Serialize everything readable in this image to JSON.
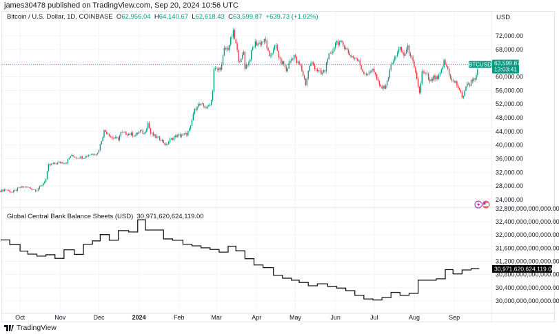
{
  "header": {
    "published": "james30478 published on TradingView.com, Sep 20, 2024 10:56 UTC"
  },
  "legend": {
    "symbol": "Bitcoin / U.S. Dollar, 1D, COINBASE",
    "o_label": "O",
    "o": "62,956.04",
    "h_label": "H",
    "h": "64,140.67",
    "l_label": "L",
    "l": "62,618.43",
    "c_label": "C",
    "c": "63,599.87",
    "change": "+639.73 (+1.02%)"
  },
  "currency": "USD",
  "last_price": {
    "ticker": "BTCUSD",
    "price": "63,599.87",
    "countdown": "13:03:41",
    "value": 63599.87
  },
  "indicator": {
    "name": "Global Central Bank Balance Sheets (USD)",
    "value": "30,971,620,624,119.00",
    "value_t": 30.9716
  },
  "footer": {
    "brand": "TradingView"
  },
  "colors": {
    "up": "#089981",
    "down": "#f23645",
    "line": "#131722",
    "ind_label_bg": "#000000"
  },
  "chart_data": [
    {
      "type": "candlestick",
      "title": "Bitcoin / U.S. Dollar, 1D, COINBASE",
      "x_unit": "days since 2023-09-16",
      "ylim": [
        22000,
        75500
      ],
      "yticks": [
        24000,
        28000,
        32000,
        36000,
        40000,
        44000,
        48000,
        52000,
        56000,
        60000,
        68000,
        72000
      ],
      "ytick_labels": [
        "24,000.00",
        "28,000.00",
        "32,000.00",
        "36,000.00",
        "40,000.00",
        "44,000.00",
        "48,000.00",
        "52,000.00",
        "56,000.00",
        "60,000.00",
        "68,000.00",
        "72,000.00"
      ],
      "approx_closes": [
        [
          0,
          26600
        ],
        [
          4,
          26950
        ],
        [
          9,
          26150
        ],
        [
          15,
          27560
        ],
        [
          19,
          27760
        ],
        [
          24,
          27150
        ],
        [
          28,
          26750
        ],
        [
          32,
          28350
        ],
        [
          35,
          30000
        ],
        [
          37,
          34000
        ],
        [
          40,
          34430
        ],
        [
          45,
          34830
        ],
        [
          51,
          35000
        ],
        [
          54,
          36850
        ],
        [
          59,
          36450
        ],
        [
          64,
          36450
        ],
        [
          69,
          37250
        ],
        [
          75,
          37650
        ],
        [
          77,
          40100
        ],
        [
          80,
          44100
        ],
        [
          83,
          43500
        ],
        [
          86,
          42100
        ],
        [
          91,
          41900
        ],
        [
          93,
          43500
        ],
        [
          99,
          43300
        ],
        [
          104,
          42900
        ],
        [
          108,
          44100
        ],
        [
          111,
          43300
        ],
        [
          114,
          46500
        ],
        [
          116,
          43500
        ],
        [
          120,
          42300
        ],
        [
          124,
          41700
        ],
        [
          128,
          39900
        ],
        [
          131,
          41500
        ],
        [
          136,
          42700
        ],
        [
          141,
          42900
        ],
        [
          144,
          43300
        ],
        [
          147,
          45100
        ],
        [
          149,
          49200
        ],
        [
          152,
          51800
        ],
        [
          156,
          51600
        ],
        [
          160,
          50800
        ],
        [
          163,
          53200
        ],
        [
          164,
          56200
        ],
        [
          165,
          62300
        ],
        [
          168,
          61900
        ],
        [
          171,
          63300
        ],
        [
          173,
          67900
        ],
        [
          176,
          68400
        ],
        [
          179,
          72000
        ],
        [
          180,
          72800
        ],
        [
          182,
          69400
        ],
        [
          184,
          65300
        ],
        [
          186,
          64700
        ],
        [
          188,
          67400
        ],
        [
          189,
          62900
        ],
        [
          192,
          64300
        ],
        [
          195,
          68400
        ],
        [
          197,
          69800
        ],
        [
          200,
          69800
        ],
        [
          203,
          70400
        ],
        [
          205,
          70400
        ],
        [
          208,
          65300
        ],
        [
          211,
          68400
        ],
        [
          213,
          68800
        ],
        [
          216,
          64700
        ],
        [
          219,
          63700
        ],
        [
          221,
          61700
        ],
        [
          224,
          64700
        ],
        [
          227,
          66300
        ],
        [
          229,
          64300
        ],
        [
          232,
          63100
        ],
        [
          235,
          59300
        ],
        [
          236,
          57900
        ],
        [
          239,
          63300
        ],
        [
          241,
          63900
        ],
        [
          245,
          61900
        ],
        [
          248,
          60700
        ],
        [
          251,
          61900
        ],
        [
          253,
          65900
        ],
        [
          256,
          66300
        ],
        [
          259,
          70400
        ],
        [
          262,
          70000
        ],
        [
          264,
          69400
        ],
        [
          267,
          68800
        ],
        [
          269,
          66700
        ],
        [
          272,
          66000
        ],
        [
          275,
          65300
        ],
        [
          277,
          64300
        ],
        [
          280,
          61700
        ],
        [
          283,
          60900
        ],
        [
          285,
          60700
        ],
        [
          288,
          62700
        ],
        [
          291,
          59300
        ],
        [
          293,
          57300
        ],
        [
          296,
          56600
        ],
        [
          299,
          58300
        ],
        [
          301,
          62300
        ],
        [
          304,
          64700
        ],
        [
          307,
          67400
        ],
        [
          309,
          68000
        ],
        [
          312,
          66300
        ],
        [
          315,
          68400
        ],
        [
          317,
          66700
        ],
        [
          320,
          62300
        ],
        [
          323,
          57300
        ],
        [
          324,
          55200
        ],
        [
          326,
          61300
        ],
        [
          330,
          60300
        ],
        [
          332,
          58300
        ],
        [
          335,
          59700
        ],
        [
          338,
          59300
        ],
        [
          340,
          60700
        ],
        [
          343,
          64300
        ],
        [
          346,
          62300
        ],
        [
          349,
          58700
        ],
        [
          352,
          58300
        ],
        [
          355,
          56200
        ],
        [
          357,
          53600
        ],
        [
          360,
          57300
        ],
        [
          363,
          57900
        ],
        [
          365,
          59300
        ],
        [
          368,
          59900
        ],
        [
          370,
          63599.87
        ]
      ]
    },
    {
      "type": "line",
      "step": true,
      "title": "Global Central Bank Balance Sheets (USD)",
      "y_unit": "trillion USD",
      "ylim": [
        29.6,
        32.9
      ],
      "yticks": [
        30.0,
        30.4,
        30.8,
        31.2,
        31.6,
        32.0,
        32.4,
        32.8
      ],
      "ytick_labels": [
        "30,000,000,000,000.00",
        "30,400,000,000,000.00",
        "30,800,000,000,000.00",
        "31,200,000,000,000.00",
        "31,600,000,000,000.00",
        "32,000,000,000,000.00",
        "32,400,000,000,000.00",
        "32,800,000,000,000.00"
      ],
      "points": [
        [
          0,
          31.85
        ],
        [
          7,
          31.71
        ],
        [
          15,
          31.51
        ],
        [
          21,
          31.42
        ],
        [
          28,
          31.36
        ],
        [
          35,
          31.4
        ],
        [
          42,
          31.29
        ],
        [
          49,
          31.55
        ],
        [
          57,
          31.41
        ],
        [
          64,
          31.72
        ],
        [
          71,
          31.82
        ],
        [
          77,
          32.01
        ],
        [
          84,
          31.84
        ],
        [
          91,
          32.13
        ],
        [
          99,
          32.09
        ],
        [
          106,
          32.46
        ],
        [
          112,
          32.15
        ],
        [
          126,
          31.88
        ],
        [
          133,
          31.84
        ],
        [
          141,
          31.72
        ],
        [
          148,
          31.67
        ],
        [
          155,
          31.61
        ],
        [
          162,
          31.56
        ],
        [
          169,
          31.48
        ],
        [
          176,
          31.66
        ],
        [
          182,
          31.52
        ],
        [
          189,
          31.28
        ],
        [
          196,
          31.09
        ],
        [
          203,
          31.01
        ],
        [
          211,
          30.78
        ],
        [
          218,
          30.69
        ],
        [
          225,
          30.63
        ],
        [
          231,
          30.56
        ],
        [
          238,
          30.46
        ],
        [
          245,
          30.52
        ],
        [
          253,
          30.44
        ],
        [
          260,
          30.39
        ],
        [
          267,
          30.31
        ],
        [
          274,
          30.17
        ],
        [
          281,
          30.06
        ],
        [
          288,
          30.03
        ],
        [
          295,
          30.1
        ],
        [
          302,
          30.26
        ],
        [
          309,
          30.17
        ],
        [
          316,
          30.23
        ],
        [
          323,
          30.63
        ],
        [
          337,
          30.67
        ],
        [
          344,
          30.95
        ],
        [
          350,
          30.82
        ],
        [
          357,
          30.94
        ],
        [
          364,
          30.98
        ],
        [
          370,
          30.97
        ]
      ]
    }
  ],
  "time_axis": [
    {
      "label": "Oct",
      "day": 15
    },
    {
      "label": "Nov",
      "day": 46
    },
    {
      "label": "Dec",
      "day": 76
    },
    {
      "label": "2024",
      "day": 107,
      "bold": true
    },
    {
      "label": "Feb",
      "day": 138
    },
    {
      "label": "Mar",
      "day": 167
    },
    {
      "label": "Apr",
      "day": 198
    },
    {
      "label": "May",
      "day": 228
    },
    {
      "label": "Jun",
      "day": 259
    },
    {
      "label": "Jul",
      "day": 289
    },
    {
      "label": "Aug",
      "day": 320
    },
    {
      "label": "Sep",
      "day": 351
    }
  ]
}
